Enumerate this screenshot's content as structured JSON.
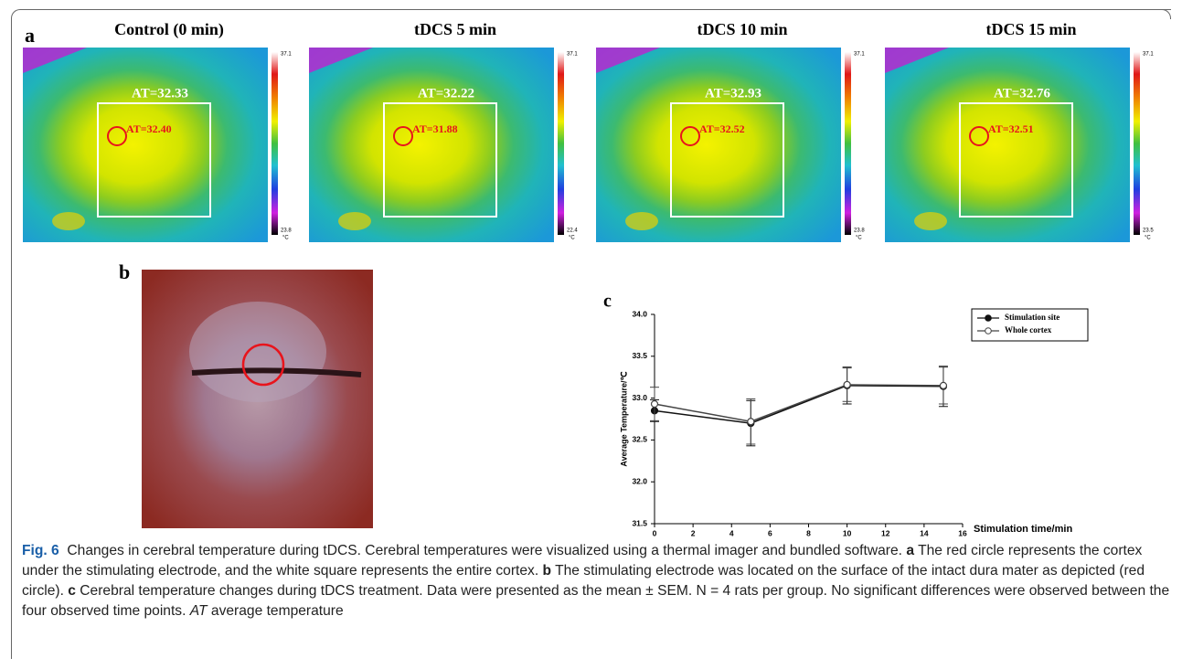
{
  "figure_label": "a",
  "panels": [
    {
      "title": "Control (0 min)",
      "whole_at": "AT=32.33",
      "site_at": "AT=32.40",
      "scale_max": 37.1,
      "scale_min": 23.8,
      "unit": "°C"
    },
    {
      "title": "tDCS 5 min",
      "whole_at": "AT=32.22",
      "site_at": "AT=31.88",
      "scale_max": 37.1,
      "scale_min": 22.4,
      "unit": "°C"
    },
    {
      "title": "tDCS 10 min",
      "whole_at": "AT=32.93",
      "site_at": "AT=32.52",
      "scale_max": 37.1,
      "scale_min": 23.8,
      "unit": "°C"
    },
    {
      "title": "tDCS 15 min",
      "whole_at": "AT=32.76",
      "site_at": "AT=32.51",
      "scale_max": 37.1,
      "scale_min": 23.5,
      "unit": "°C"
    }
  ],
  "photo_label": "b",
  "chart_data": {
    "type": "line",
    "panel_label": "c",
    "x_label": "Stimulation time/min",
    "y_label": "Average Temperature/℃",
    "x": [
      0,
      5,
      10,
      15
    ],
    "xlim": [
      0,
      16
    ],
    "xticks": [
      0,
      2,
      4,
      6,
      8,
      10,
      12,
      14,
      16
    ],
    "ylim": [
      31.5,
      34.0
    ],
    "yticks": [
      31.5,
      {
        "value": 32,
        "label": "32.0"
      },
      32.5,
      {
        "value": 33,
        "label": "33.0"
      },
      33.5,
      {
        "value": 34,
        "label": "34.0"
      }
    ],
    "series": [
      {
        "name": "Stimulation site",
        "color": "#111111",
        "marker": "filled",
        "values": [
          32.85,
          32.7,
          33.15,
          33.14
        ],
        "errors": [
          0.13,
          0.27,
          0.22,
          0.24
        ]
      },
      {
        "name": "Whole cortex",
        "color": "#444444",
        "marker": "open",
        "values": [
          32.93,
          32.72,
          33.16,
          33.15
        ],
        "errors": [
          0.2,
          0.27,
          0.2,
          0.22
        ]
      }
    ]
  },
  "caption": {
    "label": "Fig. 6",
    "intro": "Changes in cerebral temperature during tDCS. Cerebral temperatures were visualized using a thermal imager and bundled software.",
    "parts": [
      {
        "key": "a",
        "text": "The red circle represents the cortex under the stimulating electrode, and the white square represents the entire cortex."
      },
      {
        "key": "b",
        "text": "The stimulating electrode was located on the surface of the intact dura mater as depicted (red circle)."
      },
      {
        "key": "c",
        "text": "Cerebral temperature changes during tDCS treatment. Data were presented as the mean ± SEM. N = 4 rats per group. No significant differences were observed between the four observed time points."
      }
    ],
    "abbr": "AT",
    "abbr_text": "average temperature"
  }
}
